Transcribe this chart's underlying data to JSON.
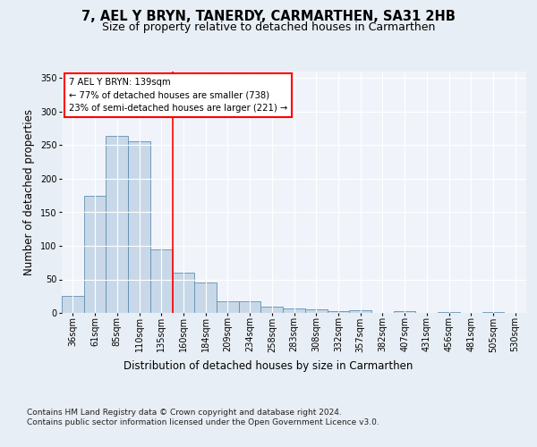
{
  "title": "7, AEL Y BRYN, TANERDY, CARMARTHEN, SA31 2HB",
  "subtitle": "Size of property relative to detached houses in Carmarthen",
  "xlabel": "Distribution of detached houses by size in Carmarthen",
  "ylabel": "Number of detached properties",
  "categories": [
    "36sqm",
    "61sqm",
    "85sqm",
    "110sqm",
    "135sqm",
    "160sqm",
    "184sqm",
    "209sqm",
    "234sqm",
    "258sqm",
    "283sqm",
    "308sqm",
    "332sqm",
    "357sqm",
    "382sqm",
    "407sqm",
    "431sqm",
    "456sqm",
    "481sqm",
    "505sqm",
    "530sqm"
  ],
  "values": [
    26,
    174,
    264,
    256,
    95,
    60,
    46,
    18,
    18,
    9,
    7,
    5,
    3,
    4,
    0,
    3,
    0,
    1,
    0,
    1,
    0
  ],
  "bar_color": "#c8d8e8",
  "bar_edge_color": "#6090b0",
  "vline_x": 4.5,
  "vline_color": "red",
  "annotation_text": "7 AEL Y BRYN: 139sqm\n← 77% of detached houses are smaller (738)\n23% of semi-detached houses are larger (221) →",
  "annotation_box_color": "white",
  "annotation_box_edge": "red",
  "ylim": [
    0,
    360
  ],
  "yticks": [
    0,
    50,
    100,
    150,
    200,
    250,
    300,
    350
  ],
  "bg_color": "#e8eef5",
  "plot_bg_color": "#f0f4fa",
  "grid_color": "#ffffff",
  "footer_text": "Contains HM Land Registry data © Crown copyright and database right 2024.\nContains public sector information licensed under the Open Government Licence v3.0.",
  "title_fontsize": 10.5,
  "subtitle_fontsize": 9,
  "axis_label_fontsize": 8.5,
  "tick_fontsize": 7,
  "footer_fontsize": 6.5
}
